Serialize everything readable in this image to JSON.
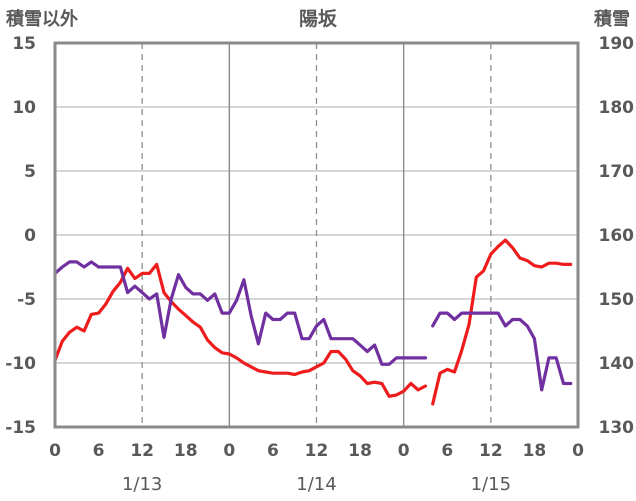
{
  "chart_data": {
    "type": "line",
    "title": "陽坂",
    "left_axis_label": "積雪以外",
    "right_axis_label": "積雪",
    "left_axis": {
      "min": -15,
      "max": 15,
      "ticks": [
        15,
        10,
        5,
        0,
        -5,
        -10,
        -15
      ]
    },
    "right_axis": {
      "min": 130,
      "max": 190,
      "ticks": [
        190,
        180,
        170,
        160,
        150,
        140,
        130
      ]
    },
    "x_axis": {
      "min": 0,
      "max": 72,
      "ticks": [
        0,
        6,
        12,
        18,
        24,
        30,
        36,
        42,
        48,
        54,
        60,
        66,
        72
      ],
      "tick_labels": [
        "0",
        "6",
        "12",
        "18",
        "0",
        "6",
        "12",
        "18",
        "0",
        "6",
        "12",
        "18",
        "0"
      ],
      "day_ticks": [
        12,
        36,
        60
      ],
      "day_labels": [
        "1/13",
        "1/14",
        "1/15"
      ],
      "dashed_grid": [
        12,
        36,
        60
      ],
      "solid_grid": [
        24,
        48
      ]
    },
    "grid_y": [
      10,
      5,
      0,
      -5,
      -10
    ],
    "series": [
      {
        "axis": "left",
        "color": "#ee1c1c",
        "points": [
          [
            0,
            -9.8
          ],
          [
            1,
            -8.3
          ],
          [
            2,
            -7.6
          ],
          [
            3,
            -7.2
          ],
          [
            4,
            -7.5
          ],
          [
            5,
            -6.2
          ],
          [
            6,
            -6.1
          ],
          [
            7,
            -5.4
          ],
          [
            8,
            -4.4
          ],
          [
            9,
            -3.7
          ],
          [
            10,
            -2.6
          ],
          [
            11,
            -3.4
          ],
          [
            12,
            -3.0
          ],
          [
            13,
            -3.0
          ],
          [
            14,
            -2.3
          ],
          [
            15,
            -4.5
          ],
          [
            16,
            -5.2
          ],
          [
            17,
            -5.8
          ],
          [
            18,
            -6.3
          ],
          [
            19,
            -6.8
          ],
          [
            20,
            -7.2
          ],
          [
            21,
            -8.2
          ],
          [
            22,
            -8.8
          ],
          [
            23,
            -9.2
          ],
          [
            24,
            -9.3
          ],
          [
            25,
            -9.6
          ],
          [
            26,
            -10.0
          ],
          [
            27,
            -10.3
          ],
          [
            28,
            -10.6
          ],
          [
            29,
            -10.7
          ],
          [
            30,
            -10.8
          ],
          [
            31,
            -10.8
          ],
          [
            32,
            -10.8
          ],
          [
            33,
            -10.9
          ],
          [
            34,
            -10.7
          ],
          [
            35,
            -10.6
          ],
          [
            36,
            -10.3
          ],
          [
            37,
            -10.0
          ],
          [
            38,
            -9.1
          ],
          [
            39,
            -9.1
          ],
          [
            40,
            -9.7
          ],
          [
            41,
            -10.6
          ],
          [
            42,
            -11.0
          ],
          [
            43,
            -11.6
          ],
          [
            44,
            -11.5
          ],
          [
            45,
            -11.6
          ],
          [
            46,
            -12.6
          ],
          [
            47,
            -12.5
          ],
          [
            48,
            -12.2
          ],
          [
            49,
            -11.6
          ],
          [
            50,
            -12.1
          ],
          [
            51,
            -11.8
          ],
          null,
          [
            52,
            -13.2
          ],
          [
            53,
            -10.8
          ],
          [
            54,
            -10.5
          ],
          [
            55,
            -10.7
          ],
          [
            56,
            -9.0
          ],
          [
            57,
            -7.0
          ],
          [
            58,
            -3.3
          ],
          [
            59,
            -2.8
          ],
          [
            60,
            -1.5
          ],
          [
            61,
            -0.9
          ],
          [
            62,
            -0.4
          ],
          [
            63,
            -1.0
          ],
          [
            64,
            -1.8
          ],
          [
            65,
            -2.0
          ],
          [
            66,
            -2.4
          ],
          [
            67,
            -2.5
          ],
          [
            68,
            -2.2
          ],
          [
            69,
            -2.2
          ],
          [
            70,
            -2.3
          ],
          [
            71,
            -2.3
          ]
        ]
      },
      {
        "axis": "left",
        "color": "#7030a0",
        "points": [
          [
            0,
            -3.0
          ],
          [
            1,
            -2.5
          ],
          [
            2,
            -2.1
          ],
          [
            3,
            -2.1
          ],
          [
            4,
            -2.5
          ],
          [
            5,
            -2.1
          ],
          [
            6,
            -2.5
          ],
          [
            7,
            -2.5
          ],
          [
            8,
            -2.5
          ],
          [
            9,
            -2.5
          ],
          [
            10,
            -4.5
          ],
          [
            11,
            -4.0
          ],
          [
            12,
            -4.5
          ],
          [
            13,
            -5.0
          ],
          [
            14,
            -4.6
          ],
          [
            15,
            -8.0
          ],
          [
            16,
            -5.0
          ],
          [
            17,
            -3.1
          ],
          [
            18,
            -4.1
          ],
          [
            19,
            -4.6
          ],
          [
            20,
            -4.6
          ],
          [
            21,
            -5.1
          ],
          [
            22,
            -4.6
          ],
          [
            23,
            -6.1
          ],
          [
            24,
            -6.1
          ],
          [
            25,
            -5.1
          ],
          [
            26,
            -3.5
          ],
          [
            27,
            -6.3
          ],
          [
            28,
            -8.5
          ],
          [
            29,
            -6.1
          ],
          [
            30,
            -6.6
          ],
          [
            31,
            -6.6
          ],
          [
            32,
            -6.1
          ],
          [
            33,
            -6.1
          ],
          [
            34,
            -8.1
          ],
          [
            35,
            -8.1
          ],
          [
            36,
            -7.1
          ],
          [
            37,
            -6.6
          ],
          [
            38,
            -8.1
          ],
          [
            39,
            -8.1
          ],
          [
            40,
            -8.1
          ],
          [
            41,
            -8.1
          ],
          [
            42,
            -8.6
          ],
          [
            43,
            -9.1
          ],
          [
            44,
            -8.6
          ],
          [
            45,
            -10.1
          ],
          [
            46,
            -10.1
          ],
          [
            47,
            -9.6
          ],
          [
            48,
            -9.6
          ],
          [
            49,
            -9.6
          ],
          [
            50,
            -9.6
          ],
          [
            51,
            -9.6
          ],
          null,
          [
            52,
            -7.1
          ],
          [
            53,
            -6.1
          ],
          [
            54,
            -6.1
          ],
          [
            55,
            -6.6
          ],
          [
            56,
            -6.1
          ],
          [
            57,
            -6.1
          ],
          [
            58,
            -6.1
          ],
          [
            59,
            -6.1
          ],
          [
            60,
            -6.1
          ],
          [
            61,
            -6.1
          ],
          [
            62,
            -7.1
          ],
          [
            63,
            -6.6
          ],
          [
            64,
            -6.6
          ],
          [
            65,
            -7.1
          ],
          [
            66,
            -8.1
          ],
          [
            67,
            -12.1
          ],
          [
            68,
            -9.6
          ],
          [
            69,
            -9.6
          ],
          [
            70,
            -11.6
          ],
          [
            71,
            -11.6
          ]
        ]
      }
    ]
  }
}
